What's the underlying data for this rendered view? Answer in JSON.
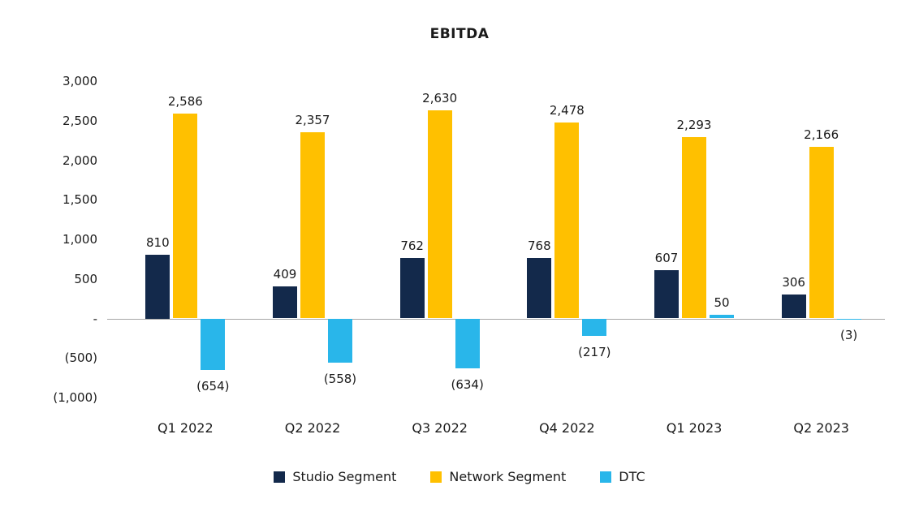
{
  "chart_data": {
    "type": "bar",
    "title": "EBITDA",
    "categories": [
      "Q1 2022",
      "Q2 2022",
      "Q3 2022",
      "Q4 2022",
      "Q1 2023",
      "Q2 2023"
    ],
    "series": [
      {
        "name": "Studio Segment",
        "color": "#13294B",
        "values": [
          810,
          409,
          762,
          768,
          607,
          306
        ],
        "labels": [
          "810",
          "409",
          "762",
          "768",
          "607",
          "306"
        ]
      },
      {
        "name": "Network Segment",
        "color": "#FFC000",
        "values": [
          2586,
          2357,
          2630,
          2478,
          2293,
          2166
        ],
        "labels": [
          "2,586",
          "2,357",
          "2,630",
          "2,478",
          "2,293",
          "2,166"
        ]
      },
      {
        "name": "DTC",
        "color": "#29B6EA",
        "values": [
          -654,
          -558,
          -634,
          -217,
          50,
          -3
        ],
        "labels": [
          "(654)",
          "(558)",
          "(634)",
          "(217)",
          "50",
          "(3)"
        ]
      }
    ],
    "ylim": [
      -1000,
      3000
    ],
    "ytick_step": 500,
    "ytick_labels": [
      "3,000",
      "2,500",
      "2,000",
      "1,500",
      "1,000",
      "500",
      "-",
      "(500)",
      "(1,000)"
    ],
    "grid": false,
    "legend_position": "bottom"
  }
}
